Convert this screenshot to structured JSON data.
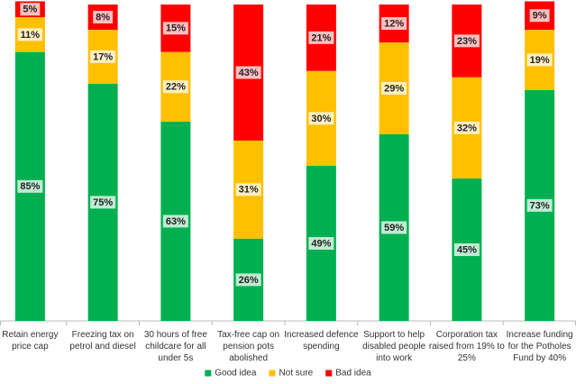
{
  "chart_data": {
    "type": "stacked_bar",
    "categories": [
      "Retain energy price cap",
      "Freezing tax on petrol and diesel",
      "30 hours of free childcare for all under 5s",
      "Tax-free cap on pension pots abolished",
      "Increased defence spending",
      "Support to help disabled people into work",
      "Corporation tax raised from 19% to 25%",
      "Increase funding for the Potholes Fund by 40%"
    ],
    "series": [
      {
        "name": "Good idea",
        "color": "#00b050",
        "values": [
          85,
          75,
          63,
          26,
          49,
          59,
          45,
          73
        ],
        "value_labels": [
          "85%",
          "75%",
          "63%",
          "26%",
          "49%",
          "59%",
          "45%",
          "73%"
        ]
      },
      {
        "name": "Not sure",
        "color": "#ffc000",
        "values": [
          11,
          17,
          22,
          31,
          30,
          29,
          32,
          19
        ],
        "value_labels": [
          "11%",
          "17%",
          "22%",
          "31%",
          "30%",
          "29%",
          "32%",
          "19%"
        ]
      },
      {
        "name": "Bad idea",
        "color": "#ff0000",
        "values": [
          5,
          8,
          15,
          43,
          21,
          12,
          23,
          9
        ],
        "value_labels": [
          "5%",
          "8%",
          "15%",
          "43%",
          "21%",
          "12%",
          "23%",
          "9%"
        ]
      }
    ],
    "ylim": [
      0,
      100
    ],
    "legend": "bottom"
  }
}
